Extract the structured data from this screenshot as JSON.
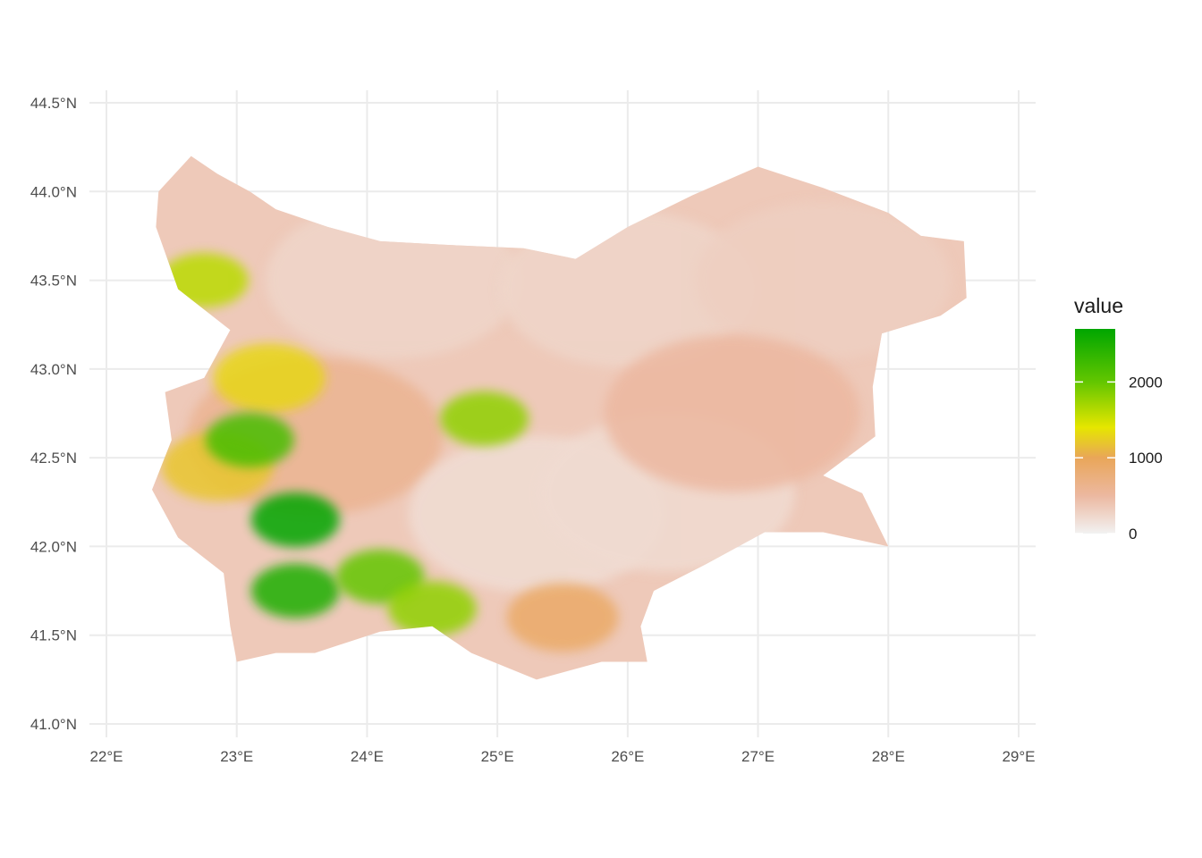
{
  "chart_data": {
    "type": "heatmap",
    "title": "",
    "xlabel": "",
    "ylabel": "",
    "xlim": [
      22,
      29
    ],
    "ylim": [
      41.0,
      44.5
    ],
    "x_ticks": [
      {
        "value": 22,
        "label": "22°E"
      },
      {
        "value": 23,
        "label": "23°E"
      },
      {
        "value": 24,
        "label": "24°E"
      },
      {
        "value": 25,
        "label": "25°E"
      },
      {
        "value": 26,
        "label": "26°E"
      },
      {
        "value": 27,
        "label": "27°E"
      },
      {
        "value": 28,
        "label": "28°E"
      },
      {
        "value": 29,
        "label": "29°E"
      }
    ],
    "y_ticks": [
      {
        "value": 41.0,
        "label": "41.0°N"
      },
      {
        "value": 41.5,
        "label": "41.5°N"
      },
      {
        "value": 42.0,
        "label": "42.0°N"
      },
      {
        "value": 42.5,
        "label": "42.5°N"
      },
      {
        "value": 43.0,
        "label": "43.0°N"
      },
      {
        "value": 43.5,
        "label": "43.5°N"
      },
      {
        "value": 44.0,
        "label": "44.0°N"
      },
      {
        "value": 44.5,
        "label": "44.5°N"
      }
    ],
    "grid": true,
    "legend": {
      "title": "value",
      "position": "right",
      "min": 0,
      "max": 2700,
      "breaks": [
        {
          "value": 0,
          "label": "0"
        },
        {
          "value": 1000,
          "label": "1000"
        },
        {
          "value": 2000,
          "label": "2000"
        }
      ],
      "color_stops": [
        {
          "value": 0,
          "color": "#f2f2f2"
        },
        {
          "value": 500,
          "color": "#ecb8a0"
        },
        {
          "value": 1000,
          "color": "#e9a659"
        },
        {
          "value": 1400,
          "color": "#e6e600"
        },
        {
          "value": 2000,
          "color": "#63c600"
        },
        {
          "value": 2700,
          "color": "#00a600"
        }
      ]
    },
    "region_outline": [
      [
        22.4,
        44.0
      ],
      [
        22.65,
        44.2
      ],
      [
        22.85,
        44.1
      ],
      [
        23.1,
        44.0
      ],
      [
        23.3,
        43.9
      ],
      [
        23.7,
        43.8
      ],
      [
        24.1,
        43.72
      ],
      [
        24.6,
        43.7
      ],
      [
        25.2,
        43.68
      ],
      [
        25.6,
        43.62
      ],
      [
        26.0,
        43.8
      ],
      [
        26.5,
        43.98
      ],
      [
        27.0,
        44.14
      ],
      [
        27.5,
        44.02
      ],
      [
        28.0,
        43.88
      ],
      [
        28.25,
        43.75
      ],
      [
        28.58,
        43.72
      ],
      [
        28.6,
        43.4
      ],
      [
        28.4,
        43.3
      ],
      [
        27.95,
        43.2
      ],
      [
        27.88,
        42.9
      ],
      [
        27.9,
        42.62
      ],
      [
        27.5,
        42.4
      ],
      [
        27.8,
        42.3
      ],
      [
        28.0,
        42.0
      ],
      [
        27.5,
        42.08
      ],
      [
        27.05,
        42.08
      ],
      [
        26.6,
        41.9
      ],
      [
        26.2,
        41.75
      ],
      [
        26.1,
        41.55
      ],
      [
        26.15,
        41.35
      ],
      [
        25.8,
        41.35
      ],
      [
        25.3,
        41.25
      ],
      [
        24.8,
        41.4
      ],
      [
        24.5,
        41.55
      ],
      [
        24.1,
        41.52
      ],
      [
        23.6,
        41.4
      ],
      [
        23.3,
        41.4
      ],
      [
        23.0,
        41.35
      ],
      [
        22.95,
        41.55
      ],
      [
        22.9,
        41.85
      ],
      [
        22.55,
        42.05
      ],
      [
        22.35,
        42.32
      ],
      [
        22.5,
        42.6
      ],
      [
        22.45,
        42.87
      ],
      [
        22.75,
        42.95
      ],
      [
        22.95,
        43.22
      ],
      [
        22.55,
        43.45
      ],
      [
        22.38,
        43.8
      ],
      [
        22.4,
        44.0
      ]
    ],
    "elevation_features": [
      {
        "lon": 24.2,
        "lat": 43.5,
        "value": 250
      },
      {
        "lon": 26.0,
        "lat": 43.45,
        "value": 250
      },
      {
        "lon": 27.5,
        "lat": 43.5,
        "value": 300
      },
      {
        "lon": 23.6,
        "lat": 42.62,
        "value": 600
      },
      {
        "lon": 25.3,
        "lat": 42.18,
        "value": 180
      },
      {
        "lon": 26.3,
        "lat": 42.3,
        "value": 200
      },
      {
        "lon": 26.8,
        "lat": 42.75,
        "value": 500
      },
      {
        "lon": 25.5,
        "lat": 41.6,
        "value": 900
      },
      {
        "lon": 22.85,
        "lat": 42.45,
        "value": 1200
      },
      {
        "lon": 23.25,
        "lat": 42.95,
        "value": 1300
      },
      {
        "lon": 24.9,
        "lat": 42.72,
        "value": 1800
      },
      {
        "lon": 23.45,
        "lat": 42.15,
        "value": 2700
      },
      {
        "lon": 23.45,
        "lat": 41.75,
        "value": 2500
      },
      {
        "lon": 24.1,
        "lat": 41.83,
        "value": 2000
      },
      {
        "lon": 24.5,
        "lat": 41.65,
        "value": 1800
      },
      {
        "lon": 23.1,
        "lat": 42.6,
        "value": 2200
      },
      {
        "lon": 22.75,
        "lat": 43.5,
        "value": 1600
      }
    ]
  }
}
